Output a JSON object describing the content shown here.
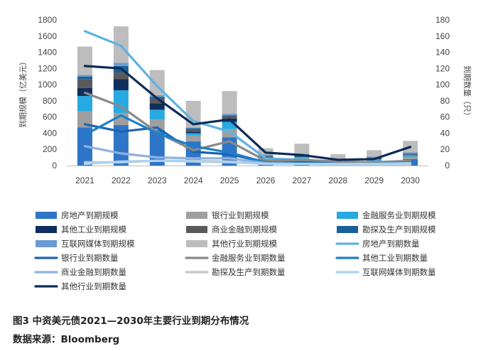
{
  "caption": {
    "title": "图3 中资美元债2021—2030年主要行业到期分布情况",
    "source": "数据来源：Bloomberg"
  },
  "chart_data": {
    "type": "bar",
    "stacked": true,
    "categories": [
      "2021",
      "2022",
      "2023",
      "2024",
      "2025",
      "2026",
      "2027",
      "2028",
      "2029",
      "2030"
    ],
    "ylabel": "到期规模（亿美元）",
    "y2label": "到期数量（只）",
    "ylim": [
      0,
      1800
    ],
    "y2lim": [
      0,
      180
    ],
    "yticks": [
      0,
      200,
      400,
      600,
      800,
      1000,
      1200,
      1400,
      1600,
      1800
    ],
    "y2ticks": [
      0,
      20,
      40,
      60,
      80,
      100,
      120,
      140,
      160,
      180
    ],
    "grid": false,
    "legend_position": "bottom",
    "bar_series": [
      {
        "name": "房地产到期规模",
        "color": "#2e75c7",
        "values": [
          470,
          500,
          440,
          300,
          350,
          50,
          40,
          30,
          20,
          80
        ]
      },
      {
        "name": "银行业到期规模",
        "color": "#9f9f9f",
        "values": [
          200,
          150,
          130,
          70,
          100,
          30,
          50,
          20,
          40,
          30
        ]
      },
      {
        "name": "金融服务业到期规模",
        "color": "#27a9e1",
        "values": [
          190,
          280,
          120,
          30,
          90,
          15,
          20,
          10,
          20,
          20
        ]
      },
      {
        "name": "其他工业到期规模",
        "color": "#0f2f5c",
        "values": [
          100,
          140,
          80,
          20,
          40,
          10,
          10,
          5,
          10,
          5
        ]
      },
      {
        "name": "商业金融到期规模",
        "color": "#5a5a5a",
        "values": [
          110,
          80,
          60,
          20,
          30,
          10,
          10,
          5,
          5,
          5
        ]
      },
      {
        "name": "勘探及生产到期规模",
        "color": "#1a5f99",
        "values": [
          30,
          80,
          20,
          20,
          10,
          5,
          5,
          5,
          5,
          5
        ]
      },
      {
        "name": "互联网媒体到期规模",
        "color": "#6a9bd5",
        "values": [
          20,
          40,
          20,
          10,
          20,
          15,
          10,
          5,
          10,
          20
        ]
      },
      {
        "name": "其他行业到期规模",
        "color": "#bdbdbd",
        "values": [
          350,
          450,
          310,
          330,
          280,
          80,
          125,
          60,
          80,
          140
        ]
      }
    ],
    "line_series": [
      {
        "name": "房地产到期数量",
        "color": "#5eb1e6",
        "values": [
          166,
          148,
          98,
          55,
          42,
          9,
          7,
          4,
          4,
          5
        ]
      },
      {
        "name": "银行业到期数量",
        "color": "#1c64b3",
        "values": [
          51,
          42,
          47,
          17,
          14,
          4,
          4,
          3,
          2,
          3
        ]
      },
      {
        "name": "金融服务业到期数量",
        "color": "#8a8a8a",
        "values": [
          90,
          73,
          41,
          19,
          30,
          6,
          7,
          5,
          4,
          6
        ]
      },
      {
        "name": "其他工业到期数量",
        "color": "#1c7fc8",
        "values": [
          38,
          62,
          40,
          24,
          16,
          4,
          3,
          2,
          2,
          4
        ]
      },
      {
        "name": "商业金融到期数量",
        "color": "#8fb1de",
        "values": [
          24,
          15,
          10,
          9,
          9,
          3,
          2,
          2,
          2,
          2
        ]
      },
      {
        "name": "勘探及生产到期数量",
        "color": "#c8c8c8",
        "values": [
          4,
          4,
          6,
          6,
          5,
          2,
          2,
          1,
          1,
          1
        ]
      },
      {
        "name": "互联网媒体到期数量",
        "color": "#a9d3f2",
        "values": [
          2,
          5,
          6,
          5,
          4,
          2,
          2,
          2,
          2,
          3
        ]
      },
      {
        "name": "其他行业到期数量",
        "color": "#0d2b57",
        "values": [
          123,
          120,
          83,
          51,
          57,
          16,
          13,
          7,
          8,
          23
        ]
      }
    ]
  }
}
